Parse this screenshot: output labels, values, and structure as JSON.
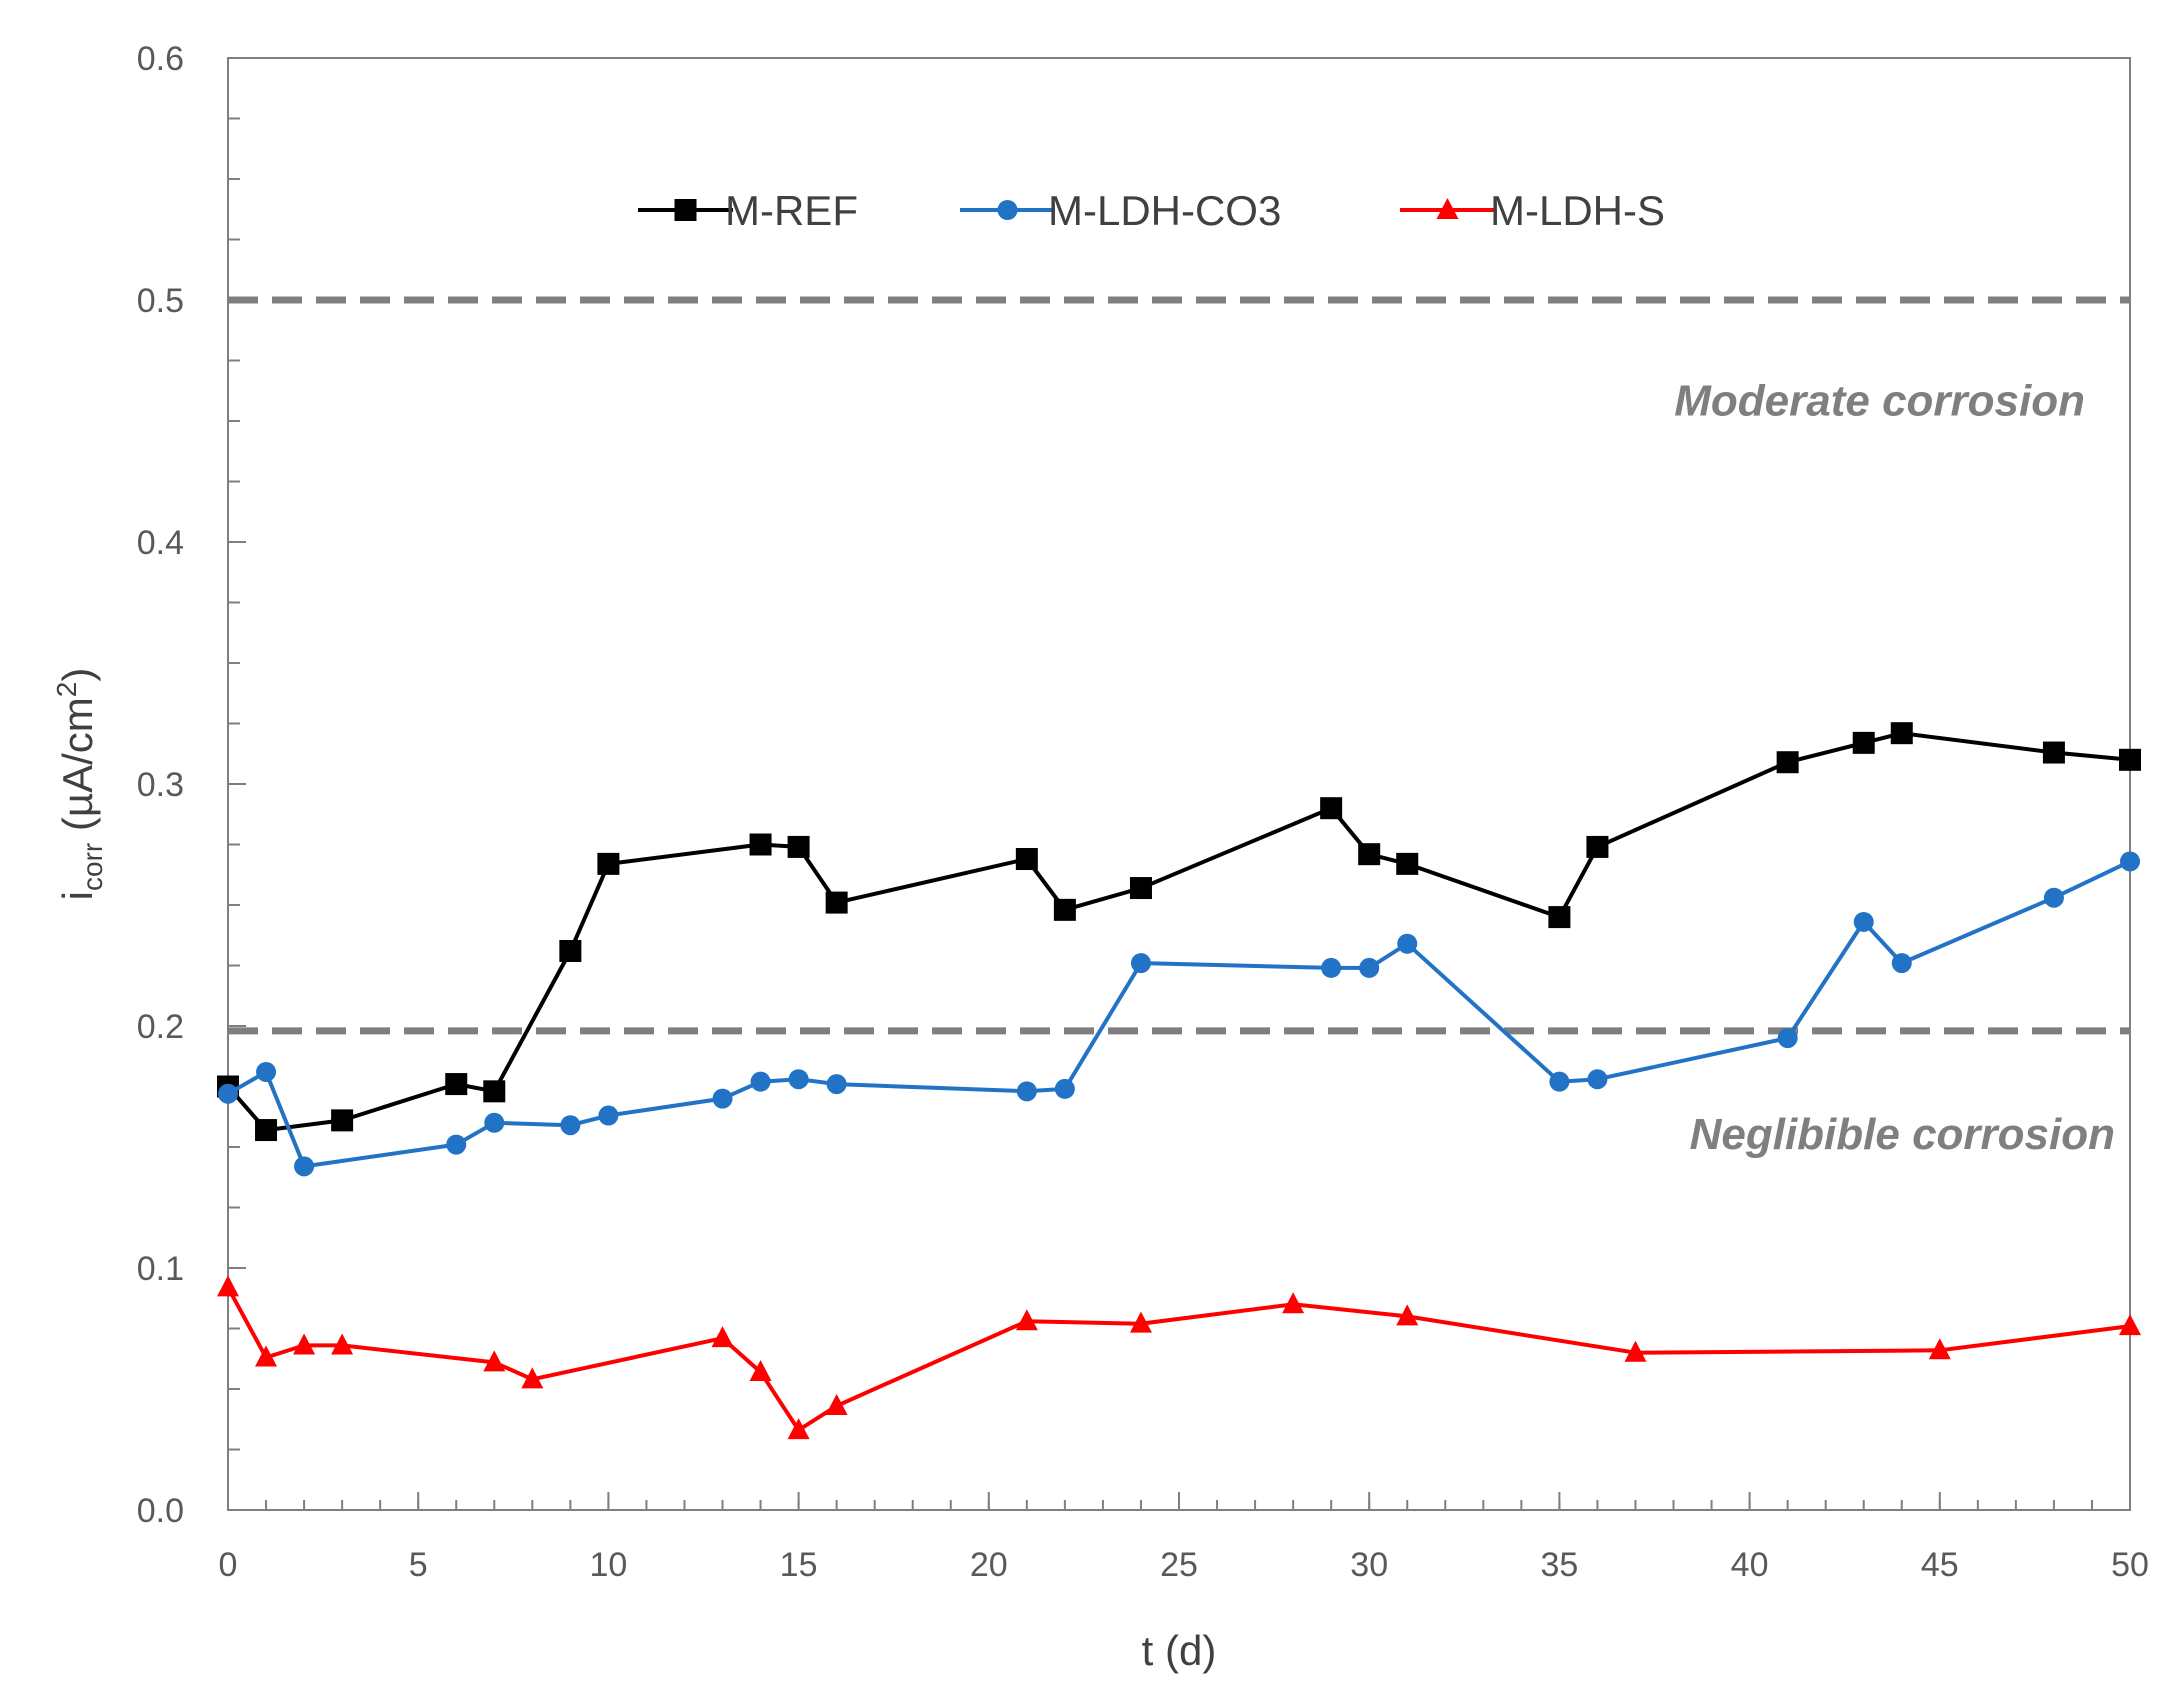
{
  "chart_data": {
    "type": "line",
    "title": "",
    "xlabel": "t (d)",
    "ylabel": {
      "prefix": "i",
      "subscript": "corr",
      "suffix": " (µA/cm",
      "superscript": "2",
      "close": ")"
    },
    "xlim": [
      0,
      50
    ],
    "ylim": [
      0,
      0.6
    ],
    "x_ticks": [
      0,
      5,
      10,
      15,
      20,
      25,
      30,
      35,
      40,
      45,
      50
    ],
    "x_tick_labels": [
      "0",
      "5",
      "10",
      "15",
      "20",
      "25",
      "30",
      "35",
      "40",
      "45",
      "50"
    ],
    "y_ticks": [
      0,
      0.1,
      0.2,
      0.3,
      0.4,
      0.5,
      0.6
    ],
    "y_tick_labels": [
      "0.0",
      "0.1",
      "0.2",
      "0.3",
      "0.4",
      "0.5",
      "0.6"
    ],
    "grid": false,
    "legend_position": "top-center",
    "series": [
      {
        "name": "M-REF",
        "color": "#000000",
        "marker": "square",
        "x": [
          0,
          1,
          3,
          6,
          7,
          9,
          10,
          14,
          15,
          16,
          21,
          22,
          24,
          29,
          30,
          31,
          35,
          36,
          41,
          43,
          44,
          48,
          50
        ],
        "y": [
          0.175,
          0.157,
          0.161,
          0.176,
          0.173,
          0.231,
          0.267,
          0.275,
          0.274,
          0.251,
          0.269,
          0.248,
          0.257,
          0.29,
          0.271,
          0.267,
          0.245,
          0.274,
          0.309,
          0.317,
          0.321,
          0.313,
          0.31
        ]
      },
      {
        "name": "M-LDH-CO3",
        "color": "#2272c6",
        "marker": "circle",
        "x": [
          0,
          1,
          2,
          6,
          7,
          9,
          10,
          13,
          14,
          15,
          16,
          21,
          22,
          24,
          29,
          30,
          31,
          35,
          36,
          41,
          43,
          44,
          48,
          50
        ],
        "y": [
          0.172,
          0.181,
          0.142,
          0.151,
          0.16,
          0.159,
          0.163,
          0.17,
          0.177,
          0.178,
          0.176,
          0.173,
          0.174,
          0.226,
          0.224,
          0.224,
          0.234,
          0.177,
          0.178,
          0.195,
          0.243,
          0.226,
          0.253,
          0.268
        ]
      },
      {
        "name": "M-LDH-S",
        "color": "#ff0000",
        "marker": "triangle",
        "x": [
          0,
          1,
          2,
          3,
          7,
          8,
          13,
          14,
          15,
          16,
          21,
          24,
          28,
          31,
          37,
          45,
          50
        ],
        "y": [
          0.092,
          0.063,
          0.068,
          0.068,
          0.061,
          0.054,
          0.071,
          0.057,
          0.033,
          0.043,
          0.078,
          0.077,
          0.085,
          0.08,
          0.065,
          0.066,
          0.076
        ]
      }
    ],
    "reference_lines": [
      {
        "y": 0.5,
        "color": "#7f7f7f",
        "style": "dashed"
      },
      {
        "y": 0.198,
        "color": "#7f7f7f",
        "style": "dashed"
      }
    ],
    "annotations": [
      {
        "text": "Moderate corrosion",
        "anchor_y": 0.458
      },
      {
        "text": "Neglibible corrosion",
        "anchor_y": 0.155
      }
    ]
  }
}
